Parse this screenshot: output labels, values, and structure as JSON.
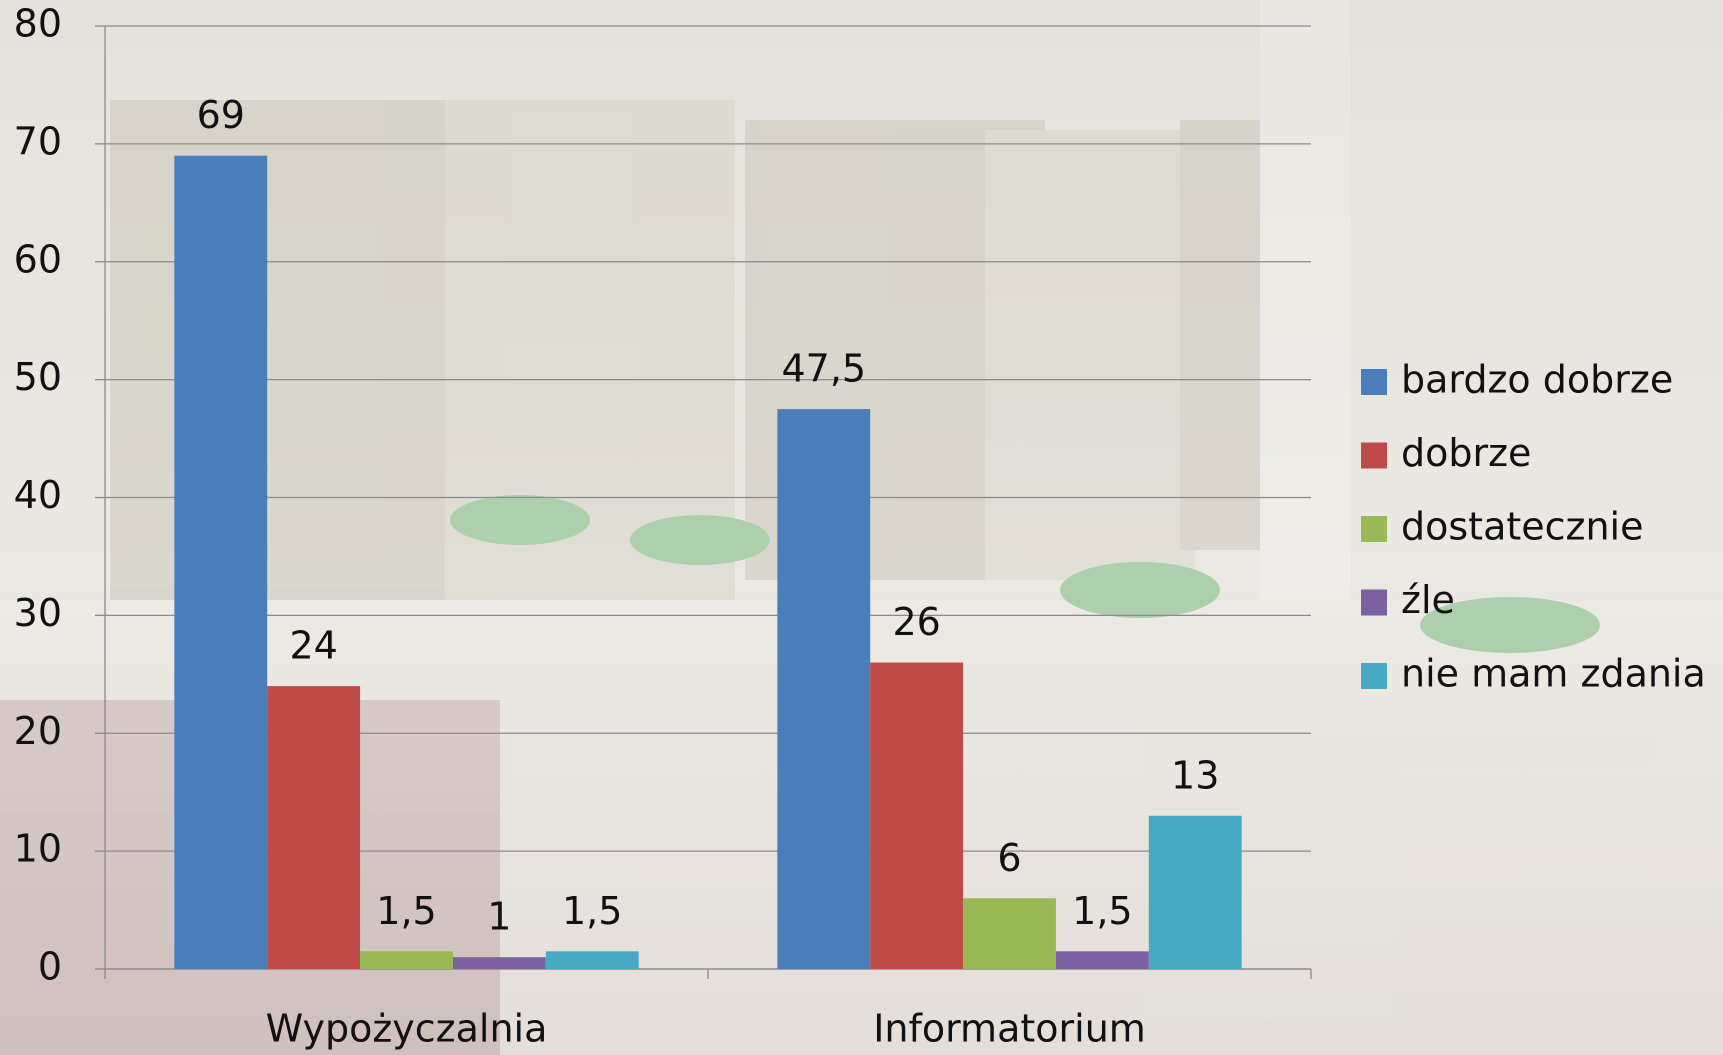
{
  "chart_data": {
    "type": "bar",
    "categories": [
      "Wypożyczalnia",
      "Informatorium"
    ],
    "series": [
      {
        "name": "bardzo dobrze",
        "color": "#4a7ebb",
        "values": [
          69,
          47.5
        ],
        "value_labels": [
          "69",
          "47,5"
        ]
      },
      {
        "name": "dobrze",
        "color": "#be4b48",
        "values": [
          24,
          26
        ],
        "value_labels": [
          "24",
          "26"
        ]
      },
      {
        "name": "dostatecznie",
        "color": "#98b954",
        "values": [
          1.5,
          6
        ],
        "value_labels": [
          "1,5",
          "6"
        ]
      },
      {
        "name": "źle",
        "color": "#7d60a0",
        "values": [
          1,
          1.5
        ],
        "value_labels": [
          "1",
          "1,5"
        ]
      },
      {
        "name": "nie mam zdania",
        "color": "#46aac5",
        "values": [
          1.5,
          13
        ],
        "value_labels": [
          "1,5",
          "13"
        ]
      }
    ],
    "ylim": [
      0,
      80
    ],
    "yticks": [
      0,
      10,
      20,
      30,
      40,
      50,
      60,
      70,
      80
    ],
    "grid": true,
    "legend": "right"
  }
}
